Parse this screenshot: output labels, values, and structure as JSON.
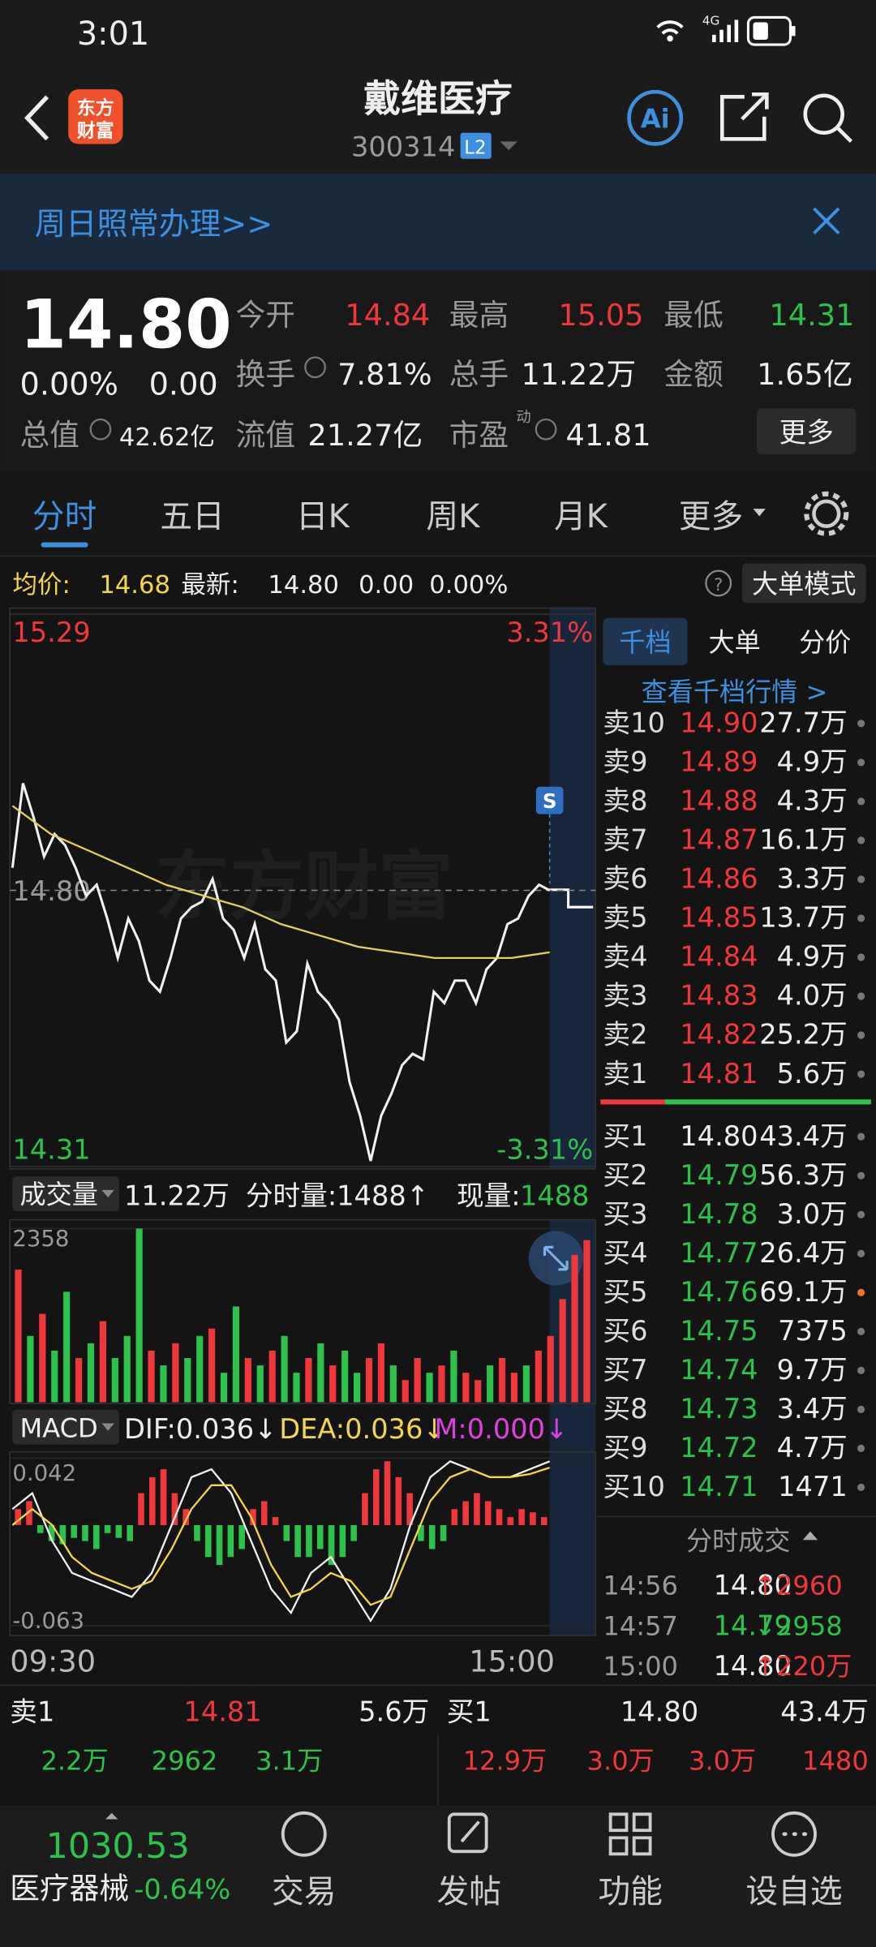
{
  "status_bar": {
    "time": "3:01",
    "network": "4G"
  },
  "header": {
    "logo": [
      "东方",
      "财富"
    ],
    "title": "戴维医疗",
    "code": "300314",
    "level": "L2"
  },
  "banner": {
    "text": "周日照常办理>>"
  },
  "quote": {
    "price": "14.80",
    "change_pct": "0.00%",
    "change": "0.00",
    "fields": [
      {
        "label": "今开",
        "value": "14.84"
      },
      {
        "label": "最高",
        "value": "15.05"
      },
      {
        "label": "最低",
        "value": "14.31"
      },
      {
        "label": "换手",
        "value": "7.81%"
      },
      {
        "label": "总手",
        "value": "11.22万"
      },
      {
        "label": "金额",
        "value": "1.65亿"
      },
      {
        "label": "总值",
        "value": "42.62亿"
      },
      {
        "label": "流值",
        "value": "21.27亿"
      },
      {
        "label": "市盈",
        "value": "41.81"
      }
    ],
    "pe_tag": "动",
    "more": "更多"
  },
  "tabs": [
    "分时",
    "五日",
    "日K",
    "周K",
    "月K",
    "更多"
  ],
  "info_bar": {
    "avg_label": "均价:",
    "avg": "14.68",
    "latest_label": "最新:",
    "latest": "14.80",
    "change": "0.00",
    "change_pct": "0.00%",
    "mode": "大单模式"
  },
  "chart_data": [
    {
      "type": "line",
      "watermark": "东方财富",
      "annotation": "S",
      "ylim": [
        14.31,
        15.29
      ],
      "yticks": [
        14.31,
        {
          "value": 14.8,
          "label": "14.80"
        },
        15.29
      ],
      "y2lim": [
        -3.31,
        3.31
      ],
      "y2ticks": [
        {
          "value": -3.31,
          "label": "-3.31%"
        },
        {
          "value": 3.31,
          "label": "3.31%"
        }
      ],
      "x_labels": [
        "09:30",
        "15:00"
      ],
      "series": [
        {
          "color": "#f2f2f2",
          "values": [
            14.84,
            14.99,
            14.93,
            14.86,
            14.9,
            14.88,
            14.84,
            14.79,
            14.81,
            14.75,
            14.68,
            14.75,
            14.71,
            14.64,
            14.62,
            14.68,
            14.75,
            14.77,
            14.78,
            14.82,
            14.75,
            14.73,
            14.68,
            14.74,
            14.66,
            14.64,
            14.53,
            14.55,
            14.67,
            14.62,
            14.6,
            14.57,
            14.46,
            14.4,
            14.32,
            14.4,
            14.44,
            14.49,
            14.51,
            14.5,
            14.62,
            14.6,
            14.64,
            14.64,
            14.6,
            14.66,
            14.68,
            14.74,
            14.75,
            14.79,
            14.81,
            14.8
          ]
        },
        {
          "color": "#e6cf5a",
          "values": [
            14.95,
            14.9,
            14.87,
            14.84,
            14.81,
            14.79,
            14.77,
            14.74,
            14.72,
            14.7,
            14.69,
            14.68,
            14.68,
            14.68,
            14.69
          ]
        }
      ]
    },
    {
      "type": "bar",
      "title": "成交量",
      "total": "11.22万",
      "period": "分时量:1488↑",
      "current_label": "现量:",
      "current": "1488",
      "ylim": [
        0,
        2358
      ],
      "yticks": [
        2358
      ],
      "values": [
        1800,
        900,
        1200,
        700,
        1500,
        600,
        800,
        1100,
        600,
        900,
        2358,
        700,
        500,
        800,
        600,
        900,
        1000,
        400,
        1300,
        600,
        500,
        700,
        900,
        400,
        600,
        800,
        500,
        700,
        400,
        600,
        800,
        500,
        300,
        600,
        400,
        500,
        700,
        400,
        300,
        500,
        600,
        400,
        500,
        700,
        900,
        1400,
        2000,
        2200
      ],
      "colors": [
        "#f0383c",
        "#2dc24a",
        "#f0383c",
        "#2dc24a",
        "#2dc24a",
        "#f0383c",
        "#2dc24a",
        "#f0383c",
        "#2dc24a",
        "#2dc24a",
        "#2dc24a",
        "#f0383c",
        "#2dc24a",
        "#f0383c",
        "#2dc24a",
        "#2dc24a",
        "#f0383c",
        "#2dc24a",
        "#2dc24a",
        "#f0383c",
        "#2dc24a",
        "#f0383c",
        "#2dc24a",
        "#2dc24a",
        "#f0383c",
        "#2dc24a",
        "#f0383c",
        "#2dc24a",
        "#2dc24a",
        "#f0383c",
        "#f0383c",
        "#2dc24a",
        "#f0383c",
        "#f0383c",
        "#2dc24a",
        "#f0383c",
        "#2dc24a",
        "#f0383c",
        "#f0383c",
        "#2dc24a",
        "#f0383c",
        "#f0383c",
        "#2dc24a",
        "#f0383c",
        "#f0383c",
        "#f0383c",
        "#f0383c",
        "#f0383c"
      ]
    },
    {
      "type": "macd",
      "title": "MACD",
      "dif": "DIF:0.036↓",
      "dea": "DEA:0.036↓",
      "m": "M:0.000↓",
      "ylim": [
        -0.063,
        0.042
      ],
      "yticks": [
        -0.063,
        0.042
      ],
      "histogram": [
        0.01,
        0.015,
        -0.005,
        -0.01,
        -0.012,
        -0.008,
        -0.01,
        -0.015,
        -0.005,
        -0.008,
        -0.01,
        0.02,
        0.03,
        0.035,
        0.02,
        0.01,
        -0.01,
        -0.02,
        -0.025,
        -0.02,
        -0.015,
        0.01,
        0.015,
        0.005,
        -0.01,
        -0.02,
        -0.02,
        -0.015,
        -0.025,
        -0.02,
        -0.01,
        0.02,
        0.035,
        0.04,
        0.03,
        0.02,
        -0.01,
        -0.015,
        -0.01,
        0.01,
        0.015,
        0.02,
        0.015,
        0.01,
        0.005,
        0.01,
        0.008,
        0.005
      ],
      "series": [
        {
          "color": "#f2f2f2",
          "values": [
            0.01,
            0.02,
            -0.01,
            -0.03,
            -0.035,
            -0.04,
            -0.045,
            -0.03,
            0.0,
            0.03,
            0.035,
            0.02,
            -0.01,
            -0.04,
            -0.055,
            -0.03,
            -0.02,
            -0.04,
            -0.06,
            -0.04,
            0.0,
            0.03,
            0.04,
            0.035,
            0.03,
            0.03,
            0.035,
            0.04
          ]
        },
        {
          "color": "#f2d74b",
          "values": [
            0.0,
            0.01,
            0.0,
            -0.02,
            -0.03,
            -0.035,
            -0.04,
            -0.035,
            -0.015,
            0.01,
            0.025,
            0.025,
            0.005,
            -0.025,
            -0.045,
            -0.04,
            -0.03,
            -0.035,
            -0.05,
            -0.045,
            -0.015,
            0.015,
            0.03,
            0.035,
            0.03,
            0.03,
            0.032,
            0.036
          ]
        }
      ]
    }
  ],
  "order_book": {
    "tabs": [
      "千档",
      "大单",
      "分价"
    ],
    "link": "查看千档行情 >",
    "asks": [
      [
        "卖10",
        "14.90",
        "27.7万"
      ],
      [
        "卖9",
        "14.89",
        "4.9万"
      ],
      [
        "卖8",
        "14.88",
        "4.3万"
      ],
      [
        "卖7",
        "14.87",
        "16.1万"
      ],
      [
        "卖6",
        "14.86",
        "3.3万"
      ],
      [
        "卖5",
        "14.85",
        "13.7万"
      ],
      [
        "卖4",
        "14.84",
        "4.9万"
      ],
      [
        "卖3",
        "14.83",
        "4.0万"
      ],
      [
        "卖2",
        "14.82",
        "25.2万"
      ],
      [
        "卖1",
        "14.81",
        "5.6万"
      ]
    ],
    "bids": [
      [
        "买1",
        "14.80",
        "43.4万"
      ],
      [
        "买2",
        "14.79",
        "56.3万"
      ],
      [
        "买3",
        "14.78",
        "3.0万"
      ],
      [
        "买4",
        "14.77",
        "26.4万"
      ],
      [
        "买5",
        "14.76",
        "69.1万"
      ],
      [
        "买6",
        "14.75",
        "7375"
      ],
      [
        "买7",
        "14.74",
        "9.7万"
      ],
      [
        "买8",
        "14.73",
        "3.4万"
      ],
      [
        "买9",
        "14.72",
        "4.7万"
      ],
      [
        "买10",
        "14.71",
        "1471"
      ]
    ]
  },
  "trades": {
    "title": "分时成交",
    "rows": [
      [
        "14:56",
        "14.80",
        "↑2960"
      ],
      [
        "14:57",
        "14.79",
        "↓2958"
      ],
      [
        "15:00",
        "14.80",
        "↑220万"
      ]
    ]
  },
  "bottom_quote": {
    "ask": [
      "卖1",
      "14.81",
      "5.6万"
    ],
    "bid": [
      "买1",
      "14.80",
      "43.4万"
    ],
    "ask_detail": [
      "2.2万",
      "2962",
      "3.1万"
    ],
    "bid_detail": [
      "12.9万",
      "3.0万",
      "3.0万",
      "1480"
    ]
  },
  "nav": {
    "index": "1030.53",
    "index_name": "医疗器械",
    "index_change": "-0.64%",
    "items": [
      "交易",
      "发帖",
      "功能",
      "设自选"
    ]
  }
}
